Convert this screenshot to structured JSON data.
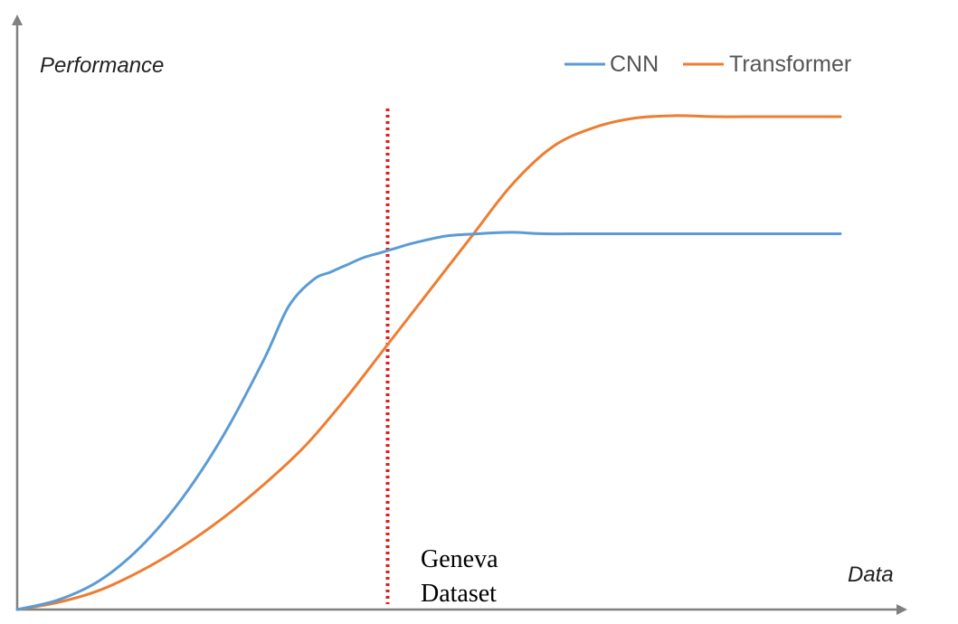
{
  "chart_data": {
    "type": "line",
    "title": "",
    "xlabel": "Data",
    "ylabel": "Performance",
    "grid": false,
    "legend_placement": "top-right",
    "x_ticks": "none",
    "y_ticks": "none",
    "xlim": [
      0,
      100
    ],
    "ylim": [
      0,
      100
    ],
    "colors": {
      "axis": "#808080",
      "marker_line": "#e31a1c",
      "cnn": "#5b9bd5",
      "transformer": "#ed7d31"
    },
    "series": [
      {
        "name": "CNN",
        "x": [
          0,
          5,
          10,
          15,
          20,
          25,
          30,
          33,
          36,
          38,
          40,
          42,
          44,
          46,
          48,
          52,
          56,
          60,
          64,
          70,
          80,
          90,
          100
        ],
        "y": [
          0,
          2,
          6,
          13,
          23,
          36,
          52,
          63,
          68.5,
          70,
          71.5,
          73,
          74,
          75,
          76,
          77.5,
          78,
          78.3,
          78,
          78,
          78,
          78,
          78
        ]
      },
      {
        "name": "Transformer",
        "x": [
          0,
          5,
          10,
          15,
          20,
          25,
          30,
          35,
          40,
          45,
          50,
          55,
          60,
          65,
          70,
          75,
          80,
          85,
          90,
          95,
          100
        ],
        "y": [
          0,
          1.5,
          4,
          8,
          13,
          19,
          26,
          34,
          44,
          55,
          66,
          77,
          88,
          96,
          100,
          102,
          102.5,
          102.3,
          102.3,
          102.3,
          102.3
        ]
      }
    ],
    "annotations": [
      {
        "type": "vertical-line",
        "x": 45,
        "style": "dotted",
        "label": "Geneva\nDataset",
        "label_lines": [
          "Geneva",
          "Dataset"
        ]
      }
    ]
  }
}
